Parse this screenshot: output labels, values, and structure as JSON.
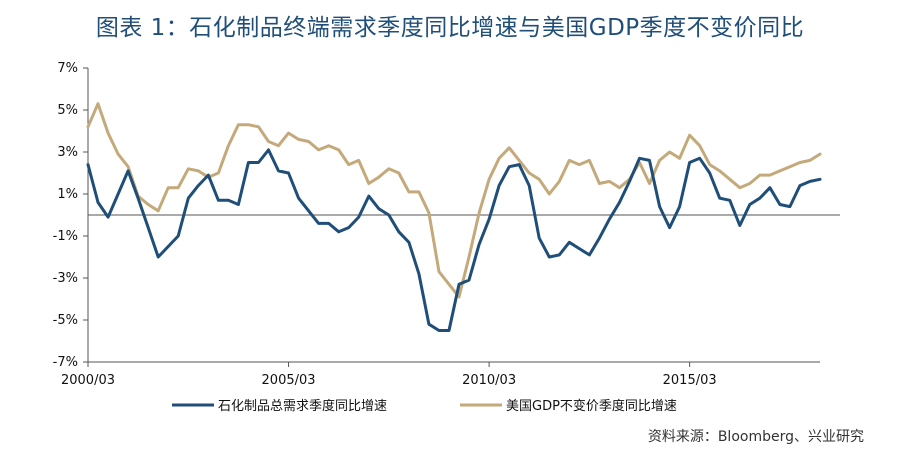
{
  "title": "图表 1：石化制品终端需求季度同比增速与美国GDP季度不变价同比",
  "source": "资料来源：Bloomberg、兴业研究",
  "colors": {
    "series1": "#1f4e79",
    "series2": "#c4a97a",
    "axis": "#555555"
  },
  "chart_data": {
    "type": "line",
    "ylim": [
      -7,
      7
    ],
    "y_ticks": [
      "7%",
      "5%",
      "3%",
      "1%",
      "-1%",
      "-3%",
      "-5%",
      "-7%"
    ],
    "y_tick_values": [
      7,
      5,
      3,
      1,
      -1,
      -3,
      -5,
      -7
    ],
    "x_tick_labels": [
      "2000/03",
      "2005/03",
      "2010/03",
      "2015/03"
    ],
    "x_tick_indices": [
      0,
      20,
      40,
      60
    ],
    "grid": false,
    "legend_position": "bottom",
    "series": [
      {
        "name": "石化制品总需求季度同比增速",
        "values": [
          2.4,
          0.6,
          -0.1,
          1.0,
          2.1,
          0.8,
          -0.6,
          -2.0,
          -1.5,
          -1.0,
          0.8,
          1.4,
          1.9,
          0.7,
          0.7,
          0.5,
          2.5,
          2.5,
          3.1,
          2.1,
          2.0,
          0.8,
          0.2,
          -0.4,
          -0.4,
          -0.8,
          -0.6,
          -0.1,
          0.9,
          0.3,
          0.0,
          -0.8,
          -1.3,
          -2.8,
          -5.2,
          -5.5,
          -5.5,
          -3.3,
          -3.1,
          -1.4,
          -0.2,
          1.4,
          2.3,
          2.4,
          1.4,
          -1.1,
          -2.0,
          -1.9,
          -1.3,
          -1.6,
          -1.9,
          -1.1,
          -0.2,
          0.6,
          1.6,
          2.7,
          2.6,
          0.4,
          -0.6,
          0.4,
          2.5,
          2.7,
          2.0,
          0.8,
          0.7,
          -0.5,
          0.5,
          0.8,
          1.3,
          0.5,
          0.4,
          1.4,
          1.6,
          1.7
        ]
      },
      {
        "name": "美国GDP不变价季度同比增速",
        "values": [
          4.2,
          5.3,
          3.9,
          2.9,
          2.3,
          0.9,
          0.5,
          0.2,
          1.3,
          1.3,
          2.2,
          2.1,
          1.8,
          2.0,
          3.3,
          4.3,
          4.3,
          4.2,
          3.5,
          3.3,
          3.9,
          3.6,
          3.5,
          3.1,
          3.3,
          3.1,
          2.4,
          2.6,
          1.5,
          1.8,
          2.2,
          2.0,
          1.1,
          1.1,
          0.1,
          -2.7,
          -3.3,
          -3.9,
          -2.0,
          0.1,
          1.7,
          2.7,
          3.2,
          2.6,
          2.0,
          1.7,
          1.0,
          1.6,
          2.6,
          2.4,
          2.6,
          1.5,
          1.6,
          1.3,
          1.7,
          2.5,
          1.5,
          2.6,
          3.0,
          2.7,
          3.8,
          3.3,
          2.4,
          2.1,
          1.7,
          1.3,
          1.5,
          1.9,
          1.9,
          2.1,
          2.3,
          2.5,
          2.6,
          2.9
        ]
      }
    ]
  }
}
